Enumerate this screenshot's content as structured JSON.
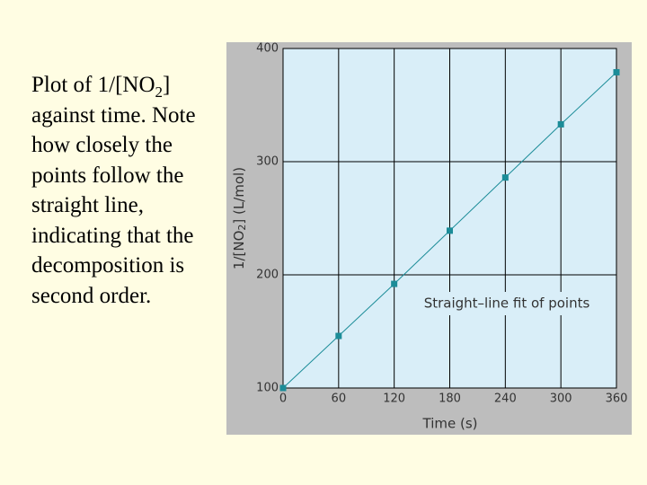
{
  "caption": [
    "Plot of 1/[NO",
    "2",
    "] against time. Note how closely the points follow the straight line, indicating that the decomposition is second order."
  ],
  "chart_data": {
    "type": "line",
    "xlabel": "Time (s)",
    "ylabel": [
      "1/[NO",
      "2",
      "] (L/mol)"
    ],
    "annotation": "Straight–line fit of points",
    "x": [
      0,
      60,
      120,
      180,
      240,
      300,
      360
    ],
    "series": [
      {
        "color": "#1b8c98",
        "values": [
          100,
          146,
          192,
          239,
          286,
          333,
          379
        ]
      }
    ],
    "xlim": [
      0,
      360
    ],
    "xticks": [
      0,
      60,
      120,
      180,
      240,
      300,
      360
    ],
    "ylim": [
      100,
      400
    ],
    "yticks": [
      100,
      200,
      300,
      400
    ],
    "grid": true
  }
}
